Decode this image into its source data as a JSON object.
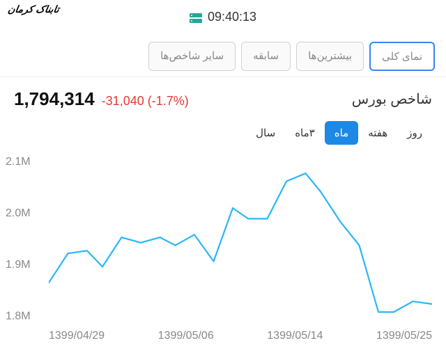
{
  "header": {
    "time": "09:40:13",
    "server_icon_color": "#26a69a",
    "logo_text": "تابناک کرمان"
  },
  "tabs": {
    "items": [
      {
        "label": "نمای کلی",
        "active": true
      },
      {
        "label": "بیشترین‌ها",
        "active": false
      },
      {
        "label": "سابقه",
        "active": false
      },
      {
        "label": "سایر شاخص‌ها",
        "active": false
      }
    ],
    "active_border_color": "#3b82f6"
  },
  "index": {
    "label": "شاخص بورس",
    "value": "1,794,314",
    "change": "-31,040",
    "change_pct": "(-1.7%)",
    "change_color": "#e53935"
  },
  "periods": {
    "items": [
      {
        "label": "روز",
        "active": false
      },
      {
        "label": "هفته",
        "active": false
      },
      {
        "label": "ماه",
        "active": true
      },
      {
        "label": "۳ماه",
        "active": false
      },
      {
        "label": "سال",
        "active": false
      }
    ],
    "active_bg": "#1e88e5"
  },
  "chart": {
    "type": "line",
    "line_color": "#29b6f6",
    "line_width": 2.2,
    "background_color": "#ffffff",
    "grid": false,
    "y_axis": {
      "min": 1800000,
      "max": 2100000,
      "ticks": [
        2100000,
        2000000,
        1900000,
        1800000
      ],
      "tick_labels": [
        "2.1M",
        "2.0M",
        "1.9M",
        "1.8M"
      ],
      "label_color": "#888888",
      "fontsize": 16
    },
    "x_axis": {
      "tick_labels": [
        "1399/04/29",
        "1399/05/06",
        "1399/05/14",
        "1399/05/25"
      ],
      "label_color": "#888888",
      "fontsize": 16
    },
    "series": [
      {
        "name": "index",
        "points": [
          {
            "x": 0.0,
            "y": 1870000
          },
          {
            "x": 0.05,
            "y": 1925000
          },
          {
            "x": 0.1,
            "y": 1930000
          },
          {
            "x": 0.14,
            "y": 1900000
          },
          {
            "x": 0.19,
            "y": 1955000
          },
          {
            "x": 0.24,
            "y": 1945000
          },
          {
            "x": 0.29,
            "y": 1955000
          },
          {
            "x": 0.33,
            "y": 1940000
          },
          {
            "x": 0.38,
            "y": 1960000
          },
          {
            "x": 0.43,
            "y": 1910000
          },
          {
            "x": 0.48,
            "y": 2010000
          },
          {
            "x": 0.52,
            "y": 1990000
          },
          {
            "x": 0.57,
            "y": 1990000
          },
          {
            "x": 0.62,
            "y": 2060000
          },
          {
            "x": 0.67,
            "y": 2075000
          },
          {
            "x": 0.71,
            "y": 2040000
          },
          {
            "x": 0.76,
            "y": 1985000
          },
          {
            "x": 0.81,
            "y": 1940000
          },
          {
            "x": 0.86,
            "y": 1815000
          },
          {
            "x": 0.9,
            "y": 1815000
          },
          {
            "x": 0.95,
            "y": 1835000
          },
          {
            "x": 1.0,
            "y": 1830000
          }
        ]
      }
    ]
  }
}
